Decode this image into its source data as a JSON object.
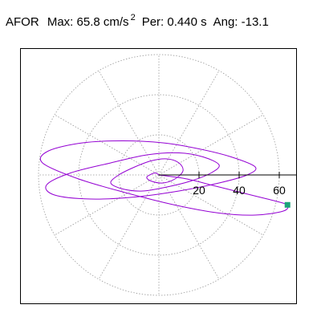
{
  "header": {
    "station": "AFOR",
    "max_label": "Max:",
    "max_value": "65.8 cm/s",
    "max_exp": "2",
    "per_label": "Per:",
    "per_value": "0.440 s",
    "ang_label": "Ang:",
    "ang_value": "-13.1"
  },
  "colors": {
    "trace": "#9400d3",
    "marker": "#1aa37a",
    "grid": "#999999",
    "axis": "#000000"
  },
  "chart_data": {
    "type": "scatter",
    "subtype": "polar-hodogram",
    "title": "",
    "radial_ticks": [
      20,
      40,
      60
    ],
    "radial_max": 65.8,
    "grid_rings": [
      20,
      40,
      60
    ],
    "spokes_deg": [
      0,
      30,
      60,
      90,
      120,
      150,
      180,
      210,
      240,
      270,
      300,
      330
    ],
    "grid": true,
    "max_point": {
      "radius": 65.8,
      "angle_deg": -13.1
    },
    "series": [
      {
        "x": [
          0,
          14,
          26,
          38,
          50,
          58,
          64,
          62,
          48,
          30,
          8,
          -16,
          -40,
          -58,
          -55,
          -38,
          -18,
          2,
          20,
          36,
          48,
          44,
          30,
          10,
          -12,
          -34,
          -52,
          -56,
          -44,
          -24,
          -6,
          10,
          22,
          30,
          26,
          16,
          4,
          -8,
          -18,
          -24,
          -20,
          -12,
          -4,
          4,
          10,
          12,
          8,
          2,
          -4,
          -6,
          -2,
          0
        ],
        "y": [
          0,
          -2,
          -5,
          -8,
          -11,
          -13,
          -15,
          -18,
          -20,
          -19,
          -15,
          -9,
          -2,
          6,
          12,
          16,
          17,
          16,
          13,
          9,
          4,
          0,
          -4,
          -8,
          -11,
          -12,
          -10,
          -5,
          1,
          6,
          10,
          11,
          9,
          5,
          1,
          -3,
          -6,
          -8,
          -7,
          -4,
          0,
          4,
          7,
          8,
          6,
          2,
          -2,
          -4,
          -3,
          -1,
          1,
          0
        ]
      }
    ]
  }
}
